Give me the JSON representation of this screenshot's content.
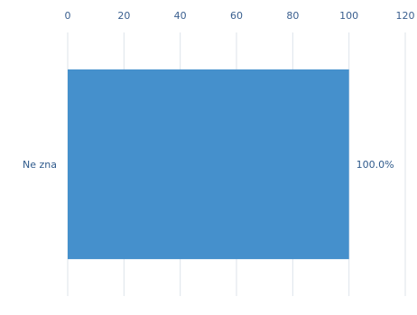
{
  "chart_data": {
    "type": "bar",
    "orientation": "horizontal",
    "categories": [
      "Ne zna"
    ],
    "values": [
      100
    ],
    "data_labels": [
      "100.0%"
    ],
    "x_ticks": [
      "0",
      "20",
      "40",
      "60",
      "80",
      "100",
      "120"
    ],
    "xlim": [
      0,
      120
    ],
    "x_axis_position": "top",
    "grid": true,
    "legend": "none",
    "colors": {
      "bar": "#4590cc",
      "grid": "#dde3ea",
      "tick_text": "#3a5f8f",
      "label_text": "#2f5a8c"
    }
  }
}
